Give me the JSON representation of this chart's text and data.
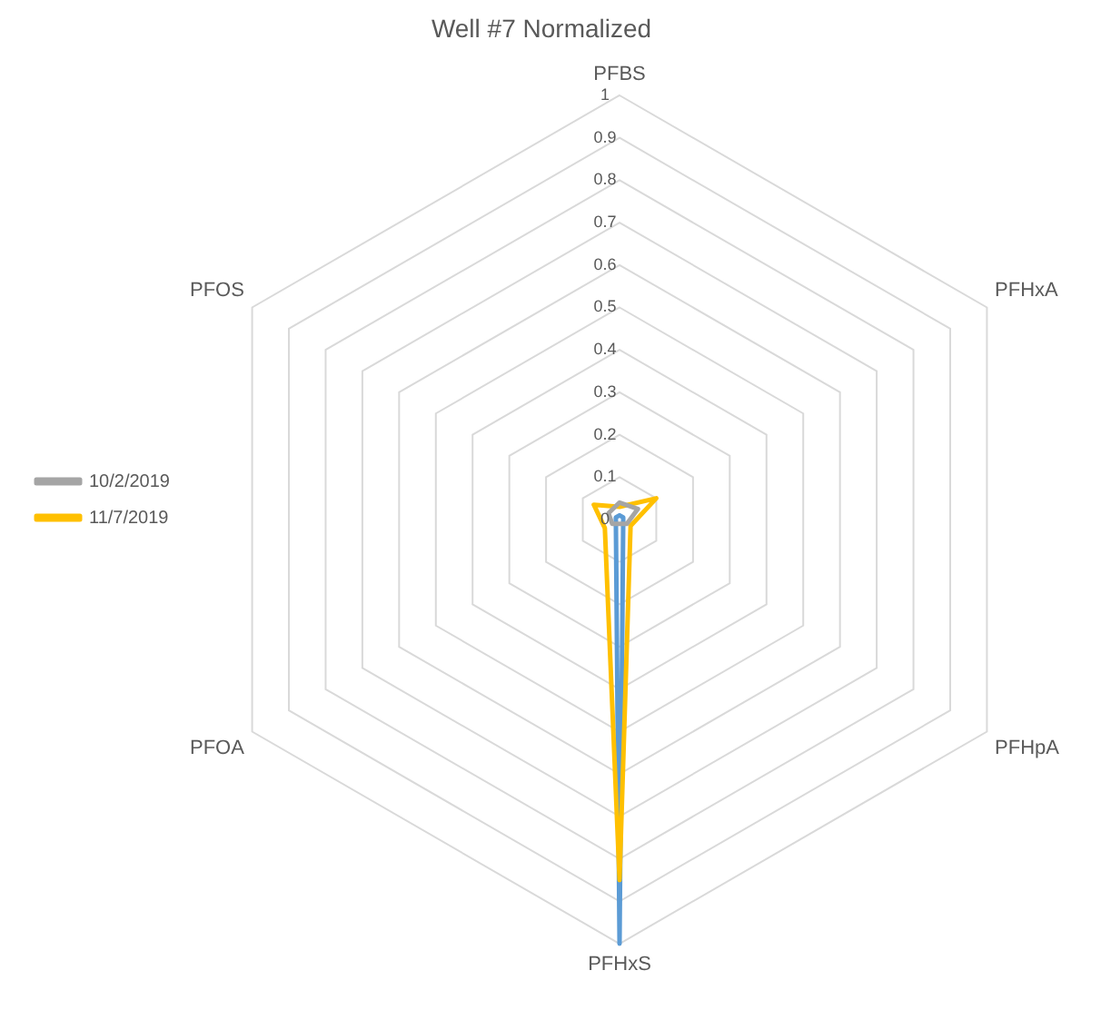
{
  "chart_data": {
    "type": "radar",
    "title": "Well #7 Normalized",
    "categories": [
      "PFBS",
      "PFHxA",
      "PFHpA",
      "PFHxS",
      "PFOA",
      "PFOS"
    ],
    "series": [
      {
        "name": "10/2/2019",
        "color": "#a5a5a5",
        "values": [
          0.04,
          0.05,
          0.02,
          null,
          0.02,
          0.03
        ]
      },
      {
        "name": "11/7/2019",
        "color": "#ffc000",
        "values": [
          0.03,
          0.1,
          0.03,
          0.85,
          0.04,
          0.07
        ]
      },
      {
        "color": "#5b9bd5",
        "values": [
          0.01,
          0.01,
          0.01,
          1,
          0.01,
          0.01
        ]
      }
    ],
    "ylim": [
      0,
      1
    ],
    "yticks": [
      {
        "value": 0,
        "label": "0"
      },
      0.1,
      0.2,
      0.3,
      0.4,
      0.5,
      0.6,
      0.7,
      0.8,
      0.9,
      1
    ],
    "grid": true,
    "legend": "left",
    "marker": "none"
  }
}
